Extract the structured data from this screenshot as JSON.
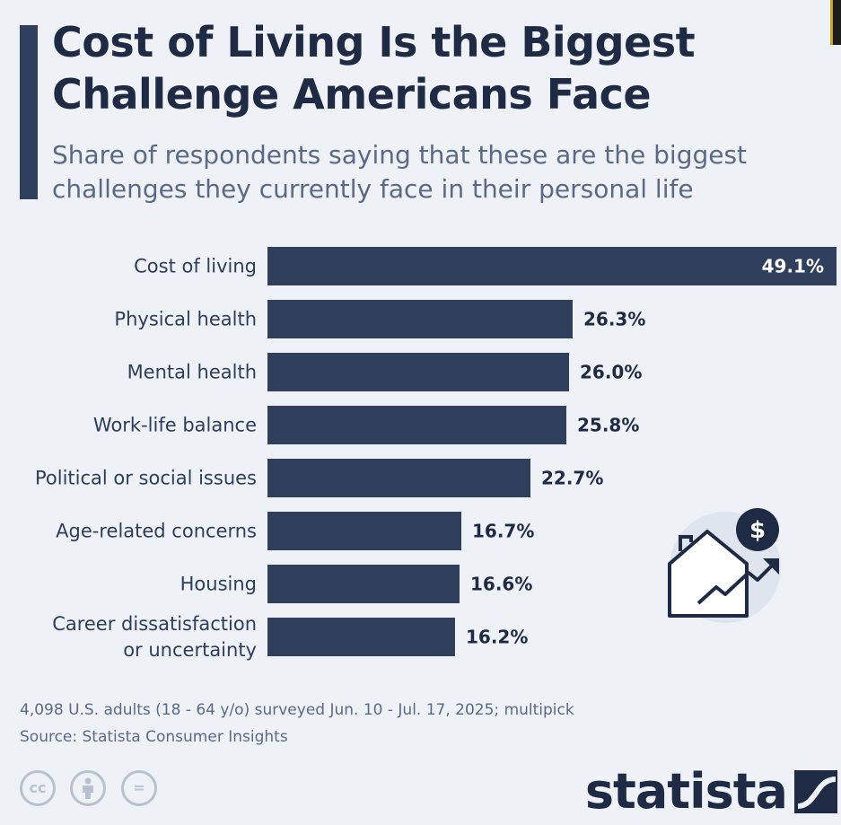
{
  "title": "Cost of Living Is the Biggest Challenge Americans Face",
  "subtitle": "Share of respondents saying that these are the biggest challenges they currently face in their personal life",
  "chart_data": {
    "type": "bar",
    "orientation": "horizontal",
    "categories": [
      [
        "Cost of living"
      ],
      [
        "Physical health"
      ],
      [
        "Mental health"
      ],
      [
        "Work-life balance"
      ],
      [
        "Political or social issues"
      ],
      [
        "Age-related concerns"
      ],
      [
        "Housing"
      ],
      [
        "Career dissatisfaction",
        "or uncertainty"
      ]
    ],
    "values": [
      49.1,
      26.3,
      26.0,
      25.8,
      22.7,
      16.7,
      16.6,
      16.2
    ],
    "value_labels": [
      "49.1%",
      "26.3%",
      "26.0%",
      "25.8%",
      "22.7%",
      "16.7%",
      "16.6%",
      "16.2%"
    ],
    "unit": "%",
    "xlim": [
      0,
      49.1
    ],
    "grid": false,
    "bar_color": "#2f3f5c"
  },
  "footnote": {
    "survey": "4,098 U.S. adults (18 - 64 y/o) surveyed Jun. 10 - Jul. 17, 2025; multipick",
    "source": "Source: Statista Consumer Insights"
  },
  "license_icons": [
    {
      "icon": "cc-icon",
      "glyph": "cc"
    },
    {
      "icon": "attribution-icon",
      "glyph": "👤"
    },
    {
      "icon": "no-derivatives-icon",
      "glyph": "="
    }
  ],
  "brand": {
    "logo_text": "statista"
  },
  "illustration": {
    "icon": "house-rising-cost-icon",
    "badge_symbol": "$"
  }
}
